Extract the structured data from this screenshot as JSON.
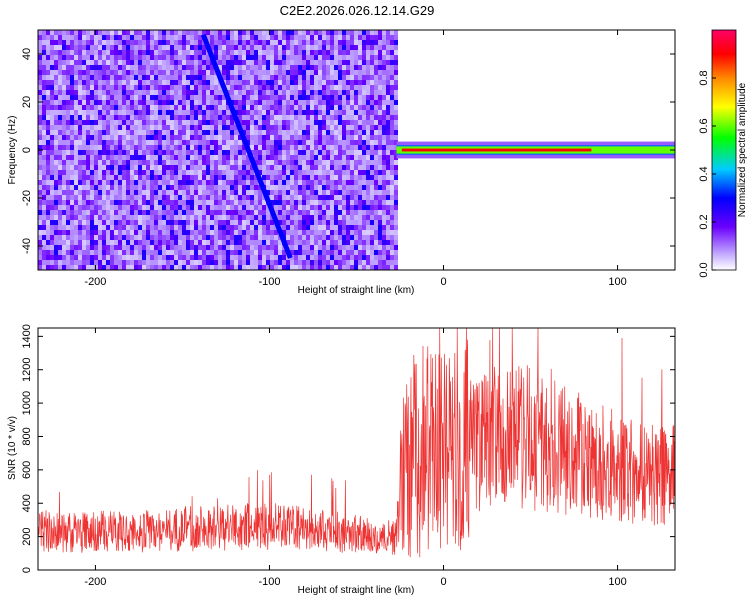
{
  "title": "C2E2.2026.026.12.14.G29",
  "chart_data": [
    {
      "type": "heatmap",
      "xlabel": "Height of straight line (km)",
      "ylabel": "Frequency (Hz)",
      "xlim": [
        -233,
        133
      ],
      "ylim": [
        -50,
        50
      ],
      "xticks": [
        -200,
        -100,
        0,
        100
      ],
      "yticks": [
        -40,
        -20,
        0,
        20,
        40
      ],
      "colorbar": {
        "label": "Normalized spectral amplitude",
        "range": [
          0,
          1
        ],
        "ticks": [
          0.0,
          0.2,
          0.4,
          0.6,
          0.8
        ],
        "tick_labels": [
          "0.0",
          "0.2",
          "0.4",
          "0.6",
          "0.8"
        ],
        "colormap": [
          "#ffffff",
          "#8a2be2",
          "#5a00ff",
          "#0000ff",
          "#00ffff",
          "#00ff00",
          "#ffff00",
          "#ff8800",
          "#ff0000",
          "#ff0066"
        ]
      },
      "regions": [
        {
          "description_x_range": [
            -233,
            -27
          ],
          "y_range": [
            -50,
            50
          ],
          "level": 0.25
        },
        {
          "description_x_range": [
            -27,
            133
          ],
          "y_range": [
            -1.5,
            1.5
          ],
          "level": 0.9
        }
      ],
      "ridge": {
        "x": [
          -138,
          -88
        ],
        "y": [
          48,
          -45
        ],
        "level": 0.3
      },
      "grid": false
    },
    {
      "type": "line",
      "xlabel": "Height of straight line (km)",
      "ylabel": "SNR (10 * v/v)",
      "xlim": [
        -233,
        133
      ],
      "ylim": [
        0,
        1450
      ],
      "xticks": [
        -200,
        -100,
        0,
        100
      ],
      "yticks": [
        0,
        200,
        400,
        600,
        800,
        1000,
        1200,
        1400
      ],
      "series": [
        {
          "color": "#ee3333",
          "x": [
            -233,
            -220,
            -200,
            -180,
            -160,
            -140,
            -120,
            -100,
            -80,
            -60,
            -40,
            -28,
            -22,
            -15,
            -10,
            -5,
            0,
            5,
            10,
            20,
            30,
            40,
            50,
            60,
            80,
            100,
            120,
            133
          ],
          "y": [
            240,
            220,
            230,
            225,
            240,
            250,
            255,
            265,
            245,
            230,
            200,
            190,
            650,
            700,
            720,
            700,
            680,
            700,
            720,
            760,
            800,
            810,
            790,
            760,
            680,
            620,
            580,
            560
          ]
        }
      ],
      "grid": false
    }
  ]
}
